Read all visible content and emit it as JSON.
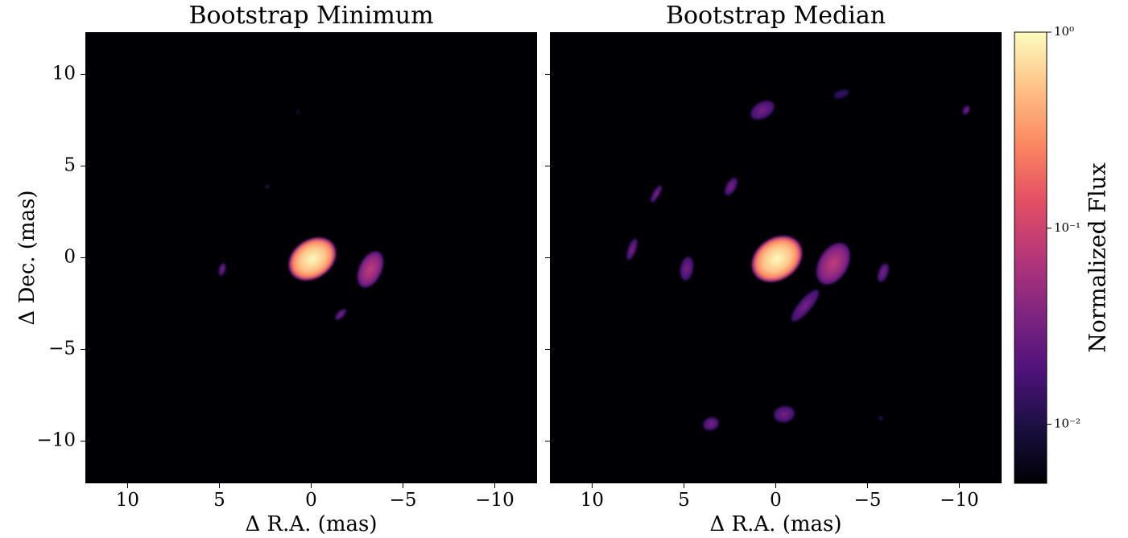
{
  "chart_data": [
    {
      "type": "image",
      "title": "Bootstrap Minimum",
      "xlabel": "Δ R.A. (mas)",
      "ylabel": "Δ Dec. (mas)",
      "xlim": [
        12.3,
        -12.3
      ],
      "ylim": [
        -12.3,
        12.3
      ],
      "xticks": [
        10,
        5,
        0,
        {
          "value": -5,
          "label": "−5"
        },
        {
          "value": -10,
          "label": "−10"
        }
      ],
      "yticks": [
        {
          "value": -10,
          "label": "−10"
        },
        {
          "value": -5,
          "label": "−5"
        },
        0,
        5,
        10
      ]
    },
    {
      "type": "image",
      "title": "Bootstrap Median",
      "xlabel": "Δ R.A. (mas)",
      "xlim": [
        12.3,
        -12.3
      ],
      "ylim": [
        -12.3,
        12.3
      ],
      "xticks": [
        10,
        5,
        0,
        {
          "value": -5,
          "label": "−5"
        },
        {
          "value": -10,
          "label": "−10"
        }
      ],
      "yticks": [
        -10,
        -5,
        0,
        5,
        10
      ],
      "colorbar": {
        "label": "Normalized Flux",
        "log": true,
        "lim": [
          0.005,
          1
        ],
        "ticks": [
          {
            "value": 0.01,
            "label": "10⁻²"
          },
          {
            "value": 0.1,
            "label": "10⁻¹"
          },
          {
            "value": 1,
            "label": "10⁰"
          }
        ]
      }
    }
  ]
}
